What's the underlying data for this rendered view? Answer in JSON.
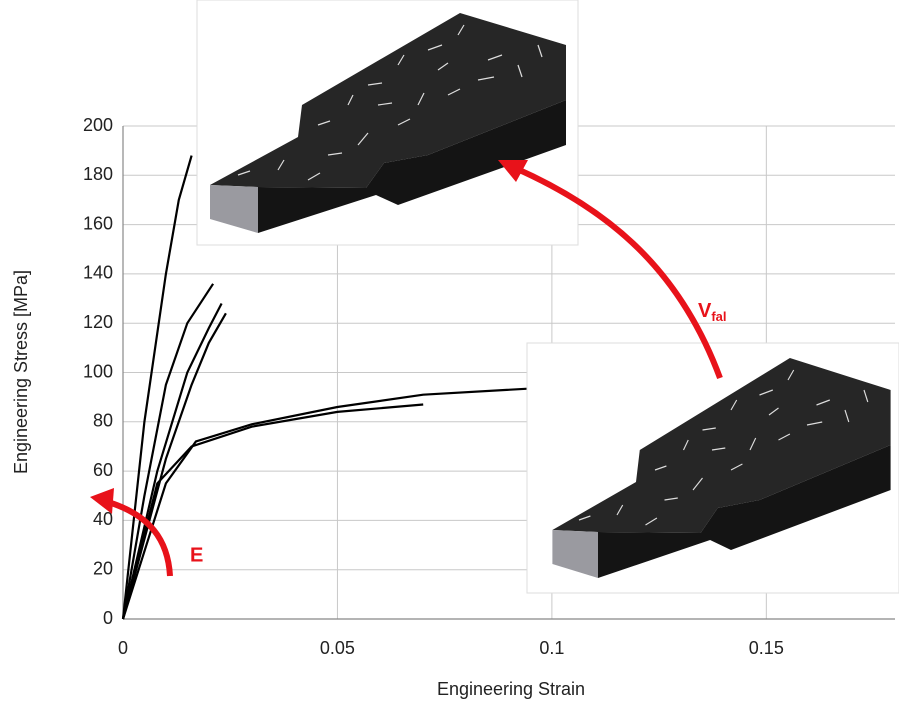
{
  "chart_data": {
    "type": "line",
    "x_label": "Engineering Strain",
    "y_label": "Engineering Stress [MPa]",
    "xlim": [
      0,
      0.18
    ],
    "ylim": [
      0,
      200
    ],
    "xticks": [
      0,
      0.05,
      0.1,
      0.15
    ],
    "yticks": [
      0,
      20,
      40,
      60,
      80,
      100,
      120,
      140,
      160,
      180,
      200
    ],
    "grid": true,
    "series": [
      {
        "color": "#000000",
        "x": [
          0,
          0.005,
          0.01,
          0.013,
          0.016
        ],
        "values": [
          0,
          80,
          140,
          170,
          188
        ]
      },
      {
        "color": "#000000",
        "x": [
          0,
          0.005,
          0.01,
          0.015,
          0.021
        ],
        "values": [
          0,
          50,
          95,
          120,
          136
        ]
      },
      {
        "color": "#000000",
        "x": [
          0,
          0.008,
          0.015,
          0.02,
          0.023
        ],
        "values": [
          0,
          60,
          100,
          118,
          128
        ]
      },
      {
        "color": "#000000",
        "x": [
          0,
          0.01,
          0.016,
          0.02,
          0.024
        ],
        "values": [
          0,
          65,
          95,
          112,
          124
        ]
      },
      {
        "color": "#000000",
        "x": [
          0,
          0.008,
          0.016,
          0.03,
          0.05,
          0.07
        ],
        "values": [
          0,
          55,
          70,
          78,
          84,
          87
        ]
      },
      {
        "color": "#000000",
        "x": [
          0,
          0.01,
          0.017,
          0.03,
          0.05,
          0.07,
          0.1
        ],
        "values": [
          0,
          55,
          72,
          79,
          86,
          91,
          94
        ]
      }
    ],
    "annotations": [
      {
        "text": "E",
        "color": "#e8121a"
      },
      {
        "text": "V",
        "subscript": "fal",
        "color": "#e8121a"
      }
    ]
  }
}
